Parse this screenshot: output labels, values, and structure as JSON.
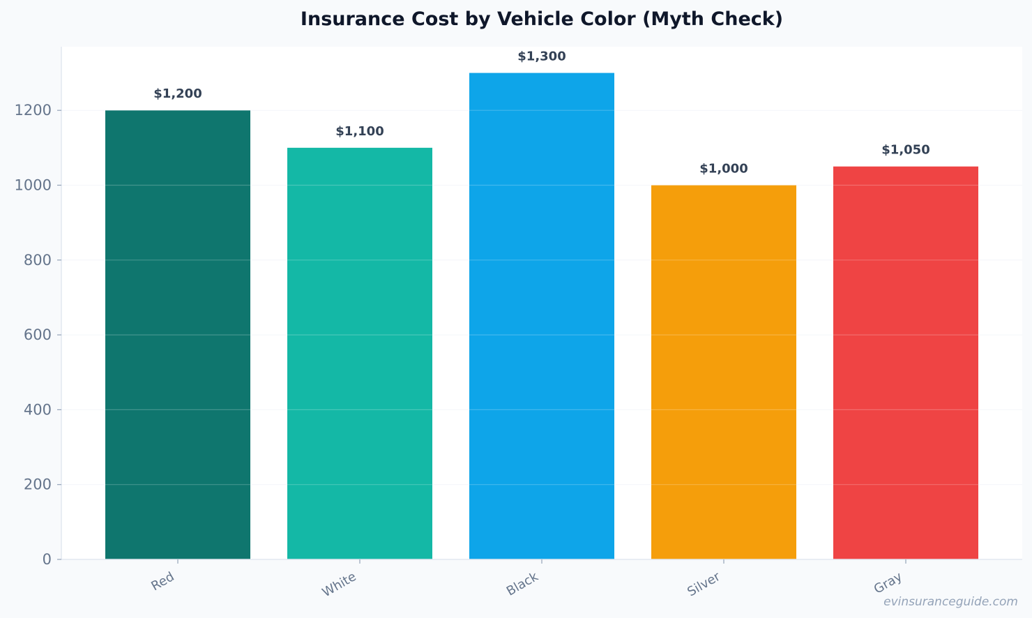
{
  "chart_data": {
    "type": "bar",
    "title": "Insurance Cost by Vehicle Color (Myth Check)",
    "categories": [
      "Red",
      "White",
      "Black",
      "Silver",
      "Gray"
    ],
    "values": [
      1200,
      1100,
      1300,
      1000,
      1050
    ],
    "data_labels": [
      "$1,200",
      "$1,100",
      "$1,300",
      "$1,000",
      "$1,050"
    ],
    "colors": [
      "#0f766e",
      "#14b8a6",
      "#0ea5e9",
      "#f59e0b",
      "#ef4444"
    ],
    "yticks": [
      0,
      200,
      400,
      600,
      800,
      1000,
      1200
    ],
    "ylim": [
      0,
      1370
    ],
    "xlabel": "",
    "ylabel": "",
    "grid": true,
    "legend": "none"
  },
  "watermark": "evinsuranceguide.com"
}
